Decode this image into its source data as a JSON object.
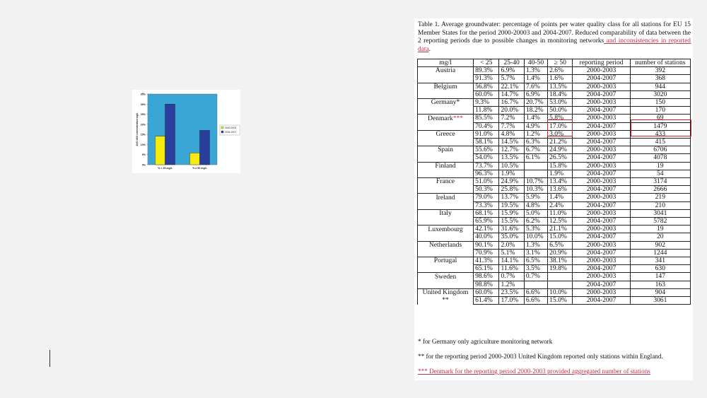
{
  "chart_data": {
    "type": "bar",
    "categories": [
      "% > 25 mg/L",
      "% ≥ 50 mg/L"
    ],
    "series": [
      {
        "name": "2000-2003",
        "values": [
          14.1,
          5.8
        ],
        "color": "#f4ea0e"
      },
      {
        "name": "2004-2007",
        "values": [
          30.0,
          17.0
        ],
        "color": "#2a3f9c"
      }
    ],
    "ylabel": "AVG NO3 concentration mg/L",
    "yticks": [
      "0%",
      "5%",
      "10%",
      "15%",
      "20%",
      "25%",
      "30%",
      "35%"
    ],
    "ylim": [
      0,
      35
    ],
    "plot_bg": "#3aa6d6",
    "legend": "right"
  },
  "document": {
    "caption_main": "Table 1. Average groundwater: percentage of points per water quality class for all stations for EU 15 Member States for the period 2000-20003 and 2004-2007. Reduced comparability of data between the 2 reporting periods due to possible changes in monitoring networks",
    "caption_red": " and inconsistencies in reported data",
    "caption_end": ".",
    "headers": [
      "mg/l",
      "< 25",
      "25-40",
      "40-50",
      "≥ 50",
      "reporting period",
      "number of stations"
    ],
    "rows": [
      {
        "country": "Austria",
        "flag": "",
        "a": [
          "89.3%",
          "6.9%",
          "1.3%",
          "2.6%",
          "2000-2003",
          "392"
        ],
        "b": [
          "91.3%",
          "5.7%",
          "1.4%",
          "1.6%",
          "2004-2007",
          "368"
        ]
      },
      {
        "country": "Belgium",
        "flag": "",
        "a": [
          "56.8%",
          "22.1%",
          "7.6%",
          "13.5%",
          "2000-2003",
          "944"
        ],
        "b": [
          "60.0%",
          "14.7%",
          "6.9%",
          "18.4%",
          "2004-2007",
          "3020"
        ]
      },
      {
        "country": "Germany*",
        "flag": "",
        "a": [
          "9.3%",
          "16.7%",
          "20.7%",
          "53.0%",
          "2000-2003",
          "150"
        ],
        "b": [
          "11.8%",
          "20.0%",
          "18.2%",
          "50.0%",
          "2004-2007",
          "170"
        ]
      },
      {
        "country": "Denmark",
        "flag": "***",
        "a": [
          "85.5%",
          "7.2%",
          "1.4%",
          "5.8%",
          "2000-2003",
          "69"
        ],
        "b": [
          "70.4%",
          "7.7%",
          "4.9%",
          "17.0%",
          "2004-2007",
          "1479"
        ]
      },
      {
        "country": "Greece",
        "flag": "",
        "a": [
          "91.0%",
          "4.8%",
          "1.2%",
          "3.0%",
          "2000-2003",
          "433"
        ],
        "b": [
          "58.1%",
          "14.5%",
          "6.3%",
          "21.2%",
          "2004-2007",
          "415"
        ]
      },
      {
        "country": "Spain",
        "flag": "",
        "a": [
          "55.6%",
          "12.7%",
          "6.7%",
          "24.9%",
          "2000-2003",
          "6706"
        ],
        "b": [
          "54.0%",
          "13.5%",
          "6.1%",
          "26.5%",
          "2004-2007",
          "4078"
        ]
      },
      {
        "country": "Finland",
        "flag": "",
        "a": [
          "73.7%",
          "10.5%",
          "",
          "15.8%",
          "2000-2003",
          "19"
        ],
        "b": [
          "96.3%",
          "1.9%",
          "",
          "1.9%",
          "2004-2007",
          "54"
        ]
      },
      {
        "country": "France",
        "flag": "",
        "a": [
          "51.0%",
          "24.9%",
          "10.7%",
          "13.4%",
          "2000-2003",
          "3174"
        ],
        "b": [
          "50.3%",
          "25.8%",
          "10.3%",
          "13.6%",
          "2004-2007",
          "2666"
        ]
      },
      {
        "country": "Ireland",
        "flag": "",
        "a": [
          "79.0%",
          "13.7%",
          "5.9%",
          "1.4%",
          "2000-2003",
          "219"
        ],
        "b": [
          "73.3%",
          "19.5%",
          "4.8%",
          "2.4%",
          "2004-2007",
          "210"
        ]
      },
      {
        "country": "Italy",
        "flag": "",
        "a": [
          "68.1%",
          "15.9%",
          "5.0%",
          "11.0%",
          "2000-2003",
          "3041"
        ],
        "b": [
          "65.9%",
          "15.5%",
          "6.2%",
          "12.5%",
          "2004-2007",
          "5782"
        ]
      },
      {
        "country": "Luxembourg",
        "flag": "",
        "a": [
          "42.1%",
          "31.6%",
          "5.3%",
          "21.1%",
          "2000-2003",
          "19"
        ],
        "b": [
          "40.0%",
          "35.0%",
          "10.0%",
          "15.0%",
          "2004-2007",
          "20"
        ]
      },
      {
        "country": "Netherlands",
        "flag": "",
        "a": [
          "90.1%",
          "2.0%",
          "1.3%",
          "6.5%",
          "2000-2003",
          "902"
        ],
        "b": [
          "70.9%",
          "5.1%",
          "3.1%",
          "20.9%",
          "2004-2007",
          "1244"
        ]
      },
      {
        "country": "Portugal",
        "flag": "",
        "a": [
          "41.3%",
          "14.1%",
          "6.5%",
          "38.1%",
          "2000-2003",
          "341"
        ],
        "b": [
          "65.1%",
          "11.6%",
          "3.5%",
          "19.8%",
          "2004-2007",
          "630"
        ]
      },
      {
        "country": "Sweden",
        "flag": "",
        "a": [
          "98.6%",
          "0.7%",
          "0.7%",
          "",
          "2000-2003",
          "147"
        ],
        "b": [
          "98.8%",
          "1.2%",
          "",
          "",
          "2004-2007",
          "163"
        ]
      },
      {
        "country": "United Kingdom",
        "flag": "**",
        "a": [
          "60.0%",
          "23.5%",
          "6.6%",
          "10.0%",
          "2000-2003",
          "904"
        ],
        "b": [
          "61.4%",
          "17.0%",
          "6.6%",
          "15.0%",
          "2004-2007",
          "3061"
        ]
      }
    ],
    "footnote1": "* for Germany only agriculture monitoring network",
    "footnote2": "** for the reporting period 2000-2003 United Kingdom reported only stations within England.",
    "footnote3": "*** Denmark for the reporting period 2000-2003 provided aggregated number of stations",
    "highlight_color": "#d42020"
  }
}
